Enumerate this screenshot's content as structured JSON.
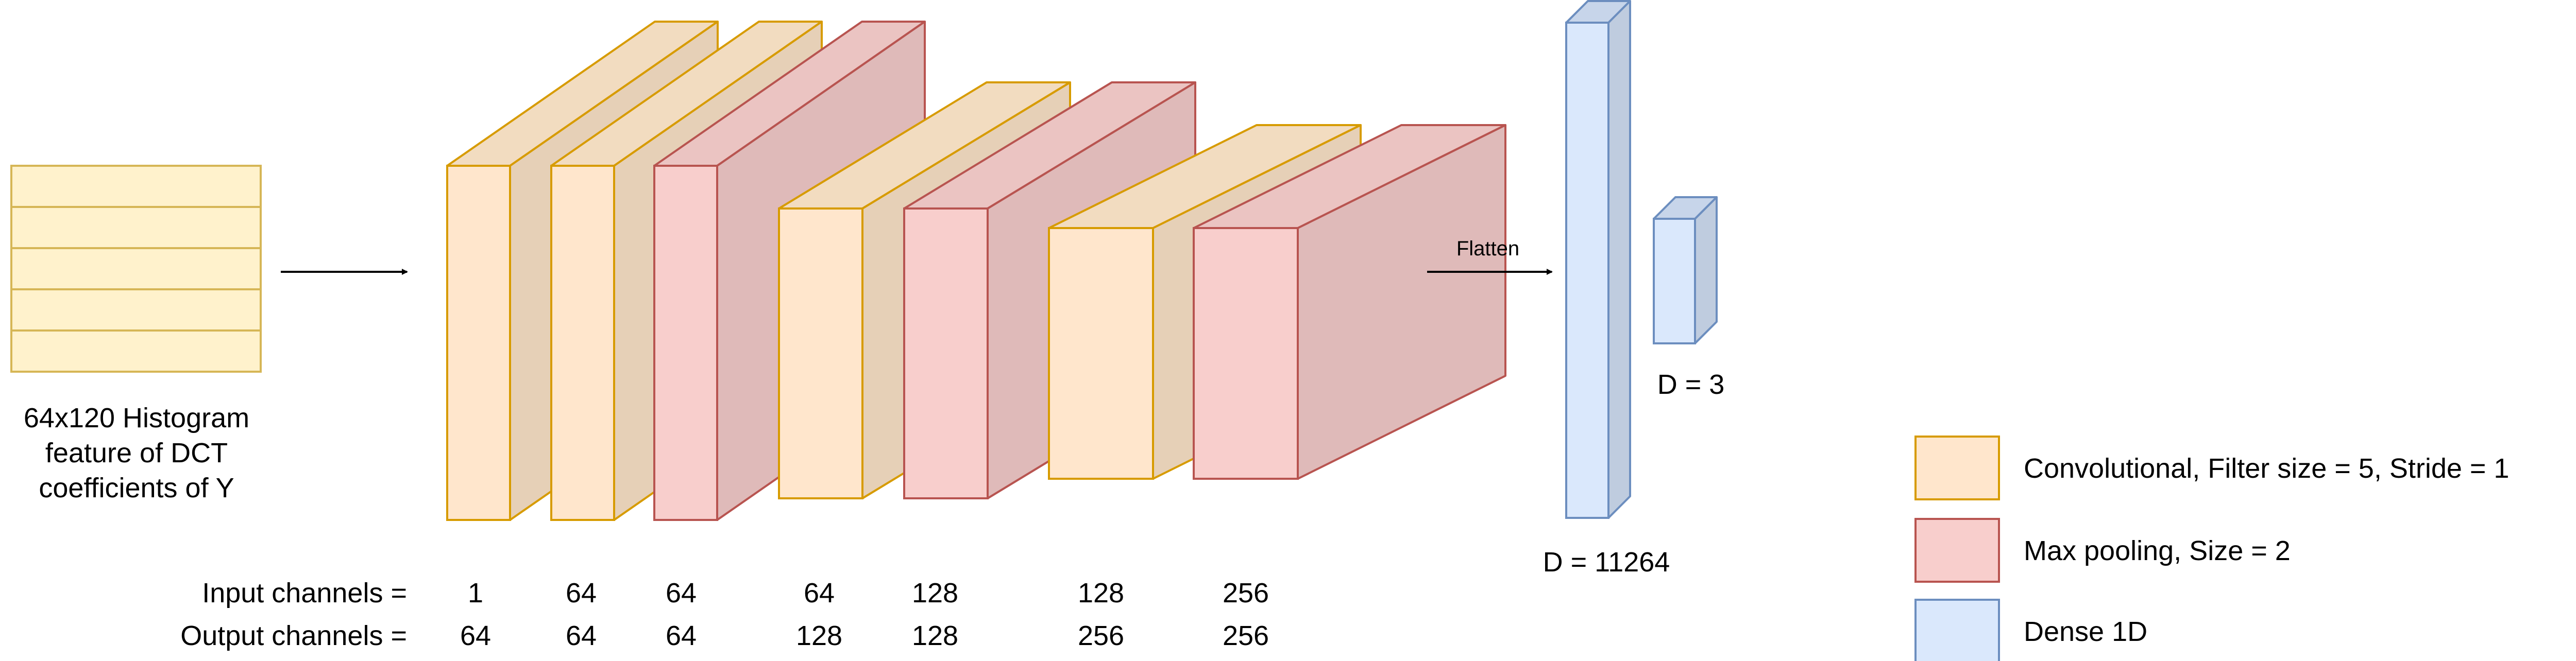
{
  "input_caption": [
    "64x120 Histogram",
    "feature of DCT",
    "coefficients of Y"
  ],
  "flatten_label": "Flatten",
  "dense_labels": {
    "large": "D = 11264",
    "small": "D = 3"
  },
  "channels": {
    "input_label": "Input channels =",
    "output_label": "Output channels =",
    "input_values": [
      "1",
      "64",
      "64",
      "64",
      "128",
      "128",
      "256"
    ],
    "output_values": [
      "64",
      "64",
      "64",
      "128",
      "128",
      "256",
      "256"
    ]
  },
  "layers": [
    {
      "kind": "conv"
    },
    {
      "kind": "conv"
    },
    {
      "kind": "pool"
    },
    {
      "kind": "conv"
    },
    {
      "kind": "pool"
    },
    {
      "kind": "conv"
    },
    {
      "kind": "pool"
    }
  ],
  "legend": [
    {
      "kind": "conv",
      "label": "Convolutional, Filter size = 5, Stride = 1"
    },
    {
      "kind": "pool",
      "label": "Max pooling, Size = 2"
    },
    {
      "kind": "dense",
      "label": "Dense 1D"
    }
  ],
  "colors": {
    "conv": {
      "front": "#ffe6cc",
      "top": "#f2dcc0",
      "side": "#e6d0b7",
      "stroke": "#d79b00"
    },
    "pool": {
      "front": "#f8cecc",
      "top": "#ebc4c2",
      "side": "#dfbab9",
      "stroke": "#b85450"
    },
    "dense": {
      "front": "#dae8fc",
      "top": "#c7d5ea",
      "side": "#bfccdf",
      "stroke": "#6c8ebf"
    },
    "input": {
      "fill": "#fff2cc",
      "stroke": "#d6b656"
    }
  }
}
